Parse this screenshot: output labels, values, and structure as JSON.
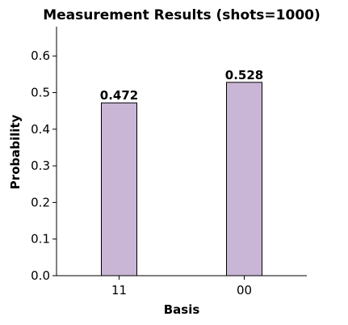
{
  "chart_data": {
    "type": "bar",
    "title": "Measurement Results (shots=1000)",
    "xlabel": "Basis",
    "ylabel": "Probability",
    "categories": [
      "11",
      "00"
    ],
    "values": [
      0.472,
      0.528
    ],
    "data_labels": [
      "0.472",
      "0.528"
    ],
    "ylim": [
      0,
      0.68
    ],
    "yticks": [
      0.0,
      0.1,
      0.2,
      0.3,
      0.4,
      0.5,
      0.6
    ],
    "ytick_labels": [
      "0.0",
      "0.1",
      "0.2",
      "0.3",
      "0.4",
      "0.5",
      "0.6"
    ],
    "bar_color": "#c9b5d5",
    "bar_edge_color": "#000000",
    "grid": false,
    "legend": "none"
  }
}
